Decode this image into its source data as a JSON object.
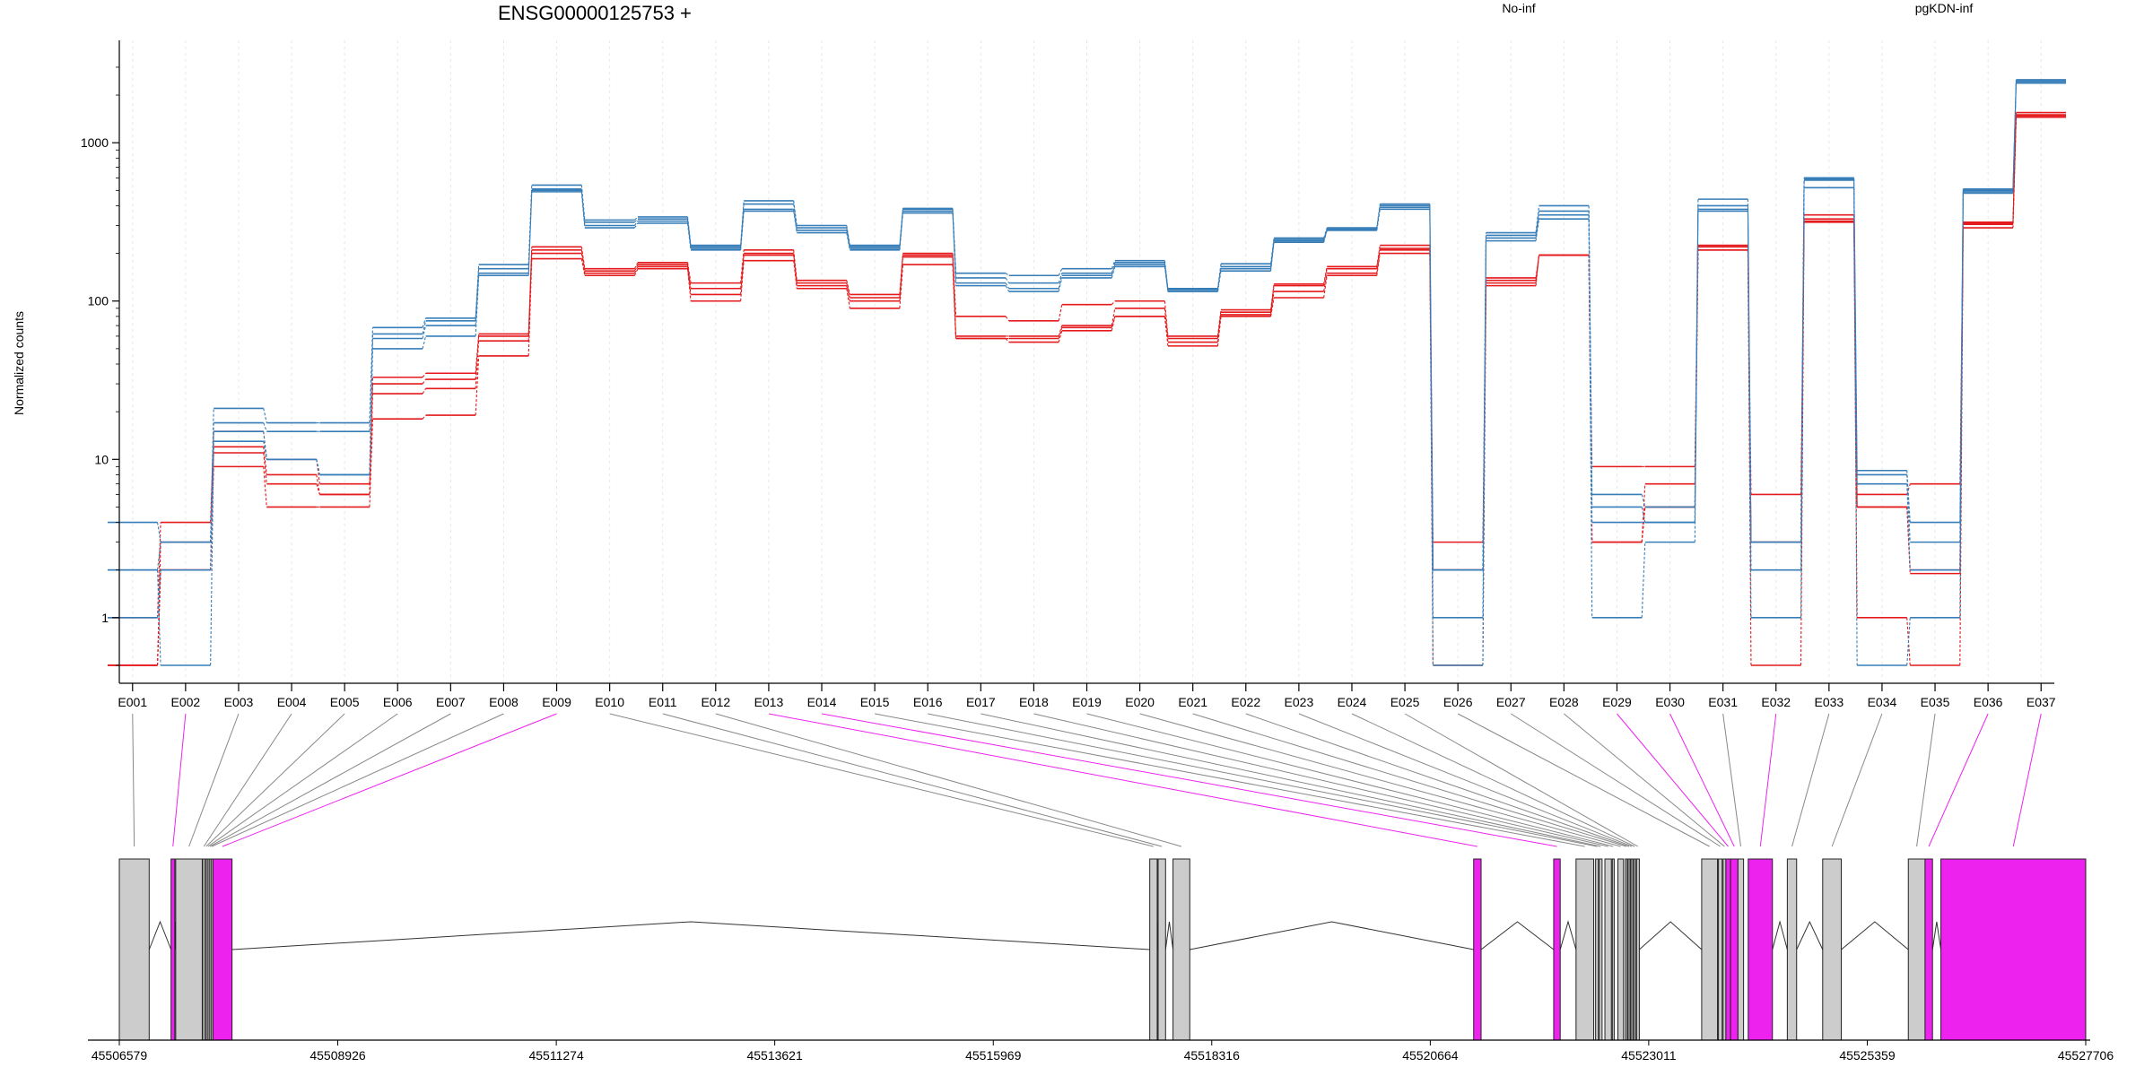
{
  "chart_data": {
    "type": "line",
    "title": "ENSG00000125753 +",
    "ylabel": "Normalized counts",
    "yscale": "log",
    "ylim": [
      0.5,
      3200
    ],
    "yticks": [
      1,
      10,
      100,
      1000
    ],
    "ytick_labels": [
      "1",
      "10",
      "100",
      "1000"
    ],
    "categories": [
      "E001",
      "E002",
      "E003",
      "E004",
      "E005",
      "E006",
      "E007",
      "E008",
      "E009",
      "E010",
      "E011",
      "E012",
      "E013",
      "E014",
      "E015",
      "E016",
      "E017",
      "E018",
      "E019",
      "E020",
      "E021",
      "E022",
      "E023",
      "E024",
      "E025",
      "E026",
      "E027",
      "E028",
      "E029",
      "E030",
      "E031",
      "E032",
      "E033",
      "E034",
      "E035",
      "E036",
      "E037"
    ],
    "series": [
      {
        "name": "No-inf",
        "group": "No-inf",
        "color": "#E41A1C",
        "values": [
          1,
          4,
          15,
          10,
          7,
          33,
          35,
          62,
          220,
          160,
          175,
          130,
          210,
          135,
          110,
          200,
          80,
          75,
          95,
          100,
          60,
          88,
          128,
          165,
          225,
          3,
          140,
          195,
          9,
          9,
          225,
          6,
          350,
          6,
          7,
          315,
          1550
        ]
      },
      {
        "name": "No-inf",
        "group": "No-inf",
        "color": "#E41A1C",
        "values": [
          0.5,
          2,
          12,
          8,
          6,
          30,
          32,
          60,
          210,
          155,
          170,
          120,
          200,
          130,
          105,
          195,
          60,
          60,
          70,
          90,
          58,
          85,
          125,
          160,
          215,
          2,
          135,
          195,
          3,
          7,
          220,
          3,
          330,
          5,
          2,
          310,
          1500
        ]
      },
      {
        "name": "No-inf",
        "group": "No-inf",
        "color": "#E41A1C",
        "values": [
          0.5,
          3,
          11,
          7,
          6,
          26,
          28,
          56,
          200,
          150,
          165,
          110,
          195,
          125,
          100,
          190,
          58,
          58,
          68,
          80,
          55,
          82,
          115,
          150,
          210,
          2,
          130,
          195,
          3,
          5,
          210,
          3,
          320,
          5,
          1.9,
          305,
          1480
        ]
      },
      {
        "name": "No-inf",
        "group": "No-inf",
        "color": "#E41A1C",
        "values": [
          0.5,
          2,
          9,
          5,
          5,
          18,
          19,
          45,
          185,
          145,
          160,
          100,
          180,
          120,
          90,
          170,
          58,
          55,
          65,
          80,
          52,
          80,
          105,
          145,
          200,
          0.5,
          125,
          195,
          3,
          5,
          210,
          0.5,
          315,
          1,
          0.5,
          290,
          1450
        ]
      },
      {
        "name": "pgKDN-inf",
        "group": "pgKDN-inf",
        "color": "#377EB8",
        "values": [
          4,
          3,
          21,
          17,
          17,
          68,
          78,
          170,
          540,
          325,
          340,
          225,
          430,
          300,
          225,
          385,
          150,
          145,
          160,
          180,
          120,
          172,
          250,
          290,
          410,
          2,
          270,
          400,
          6,
          5,
          440,
          3,
          600,
          8.5,
          4,
          510,
          2500
        ]
      },
      {
        "name": "pgKDN-inf",
        "group": "pgKDN-inf",
        "color": "#377EB8",
        "values": [
          2,
          3,
          17,
          15,
          15,
          62,
          75,
          160,
          510,
          315,
          330,
          220,
          410,
          290,
          220,
          380,
          140,
          130,
          150,
          175,
          118,
          165,
          245,
          285,
          400,
          2,
          260,
          370,
          5,
          4,
          400,
          3,
          590,
          8,
          3,
          500,
          2450
        ]
      },
      {
        "name": "pgKDN-inf",
        "group": "pgKDN-inf",
        "color": "#377EB8",
        "values": [
          1,
          2,
          15,
          10,
          8,
          58,
          70,
          150,
          500,
          300,
          320,
          215,
          380,
          280,
          215,
          370,
          130,
          120,
          145,
          170,
          115,
          160,
          240,
          280,
          390,
          1,
          250,
          350,
          4,
          4,
          380,
          2,
          580,
          7,
          2,
          490,
          2400
        ]
      },
      {
        "name": "pgKDN-inf",
        "group": "pgKDN-inf",
        "color": "#377EB8",
        "values": [
          2,
          0.5,
          13,
          10,
          8,
          50,
          60,
          145,
          490,
          290,
          310,
          210,
          370,
          270,
          210,
          360,
          125,
          115,
          140,
          165,
          115,
          155,
          235,
          280,
          380,
          0.5,
          240,
          330,
          1,
          3,
          370,
          1,
          520,
          0.5,
          1,
          480,
          2380
        ]
      }
    ],
    "legend": [
      {
        "label": "No-inf",
        "color": "#E41A1C",
        "placement": "top-center"
      },
      {
        "label": "pgKDN-inf",
        "color": "#377EB8",
        "placement": "top-right"
      }
    ],
    "grid": true
  },
  "gene_model": {
    "xlim": [
      45506579,
      45527706
    ],
    "tick_positions": [
      45506579,
      45508926,
      45511274,
      45513621,
      45515969,
      45518316,
      45520664,
      45523011,
      45525359,
      45527706
    ],
    "tick_labels": [
      "45506579",
      "45508926",
      "45511274",
      "45513621",
      "45515969",
      "45518316",
      "45520664",
      "45523011",
      "45525359",
      "45527706"
    ],
    "exon_color": "#CCCCCC",
    "highlight_color": "#EE22EE",
    "exons": [
      {
        "id": "E001",
        "start": 45506579,
        "end": 45506900,
        "highlight": false
      },
      {
        "id": "E002",
        "start": 45507135,
        "end": 45507175,
        "highlight": true
      },
      {
        "id": "E003",
        "start": 45507185,
        "end": 45507470,
        "highlight": false
      },
      {
        "id": "E004",
        "start": 45507475,
        "end": 45507500,
        "highlight": false
      },
      {
        "id": "E005",
        "start": 45507505,
        "end": 45507520,
        "highlight": false
      },
      {
        "id": "E006",
        "start": 45507525,
        "end": 45507540,
        "highlight": false
      },
      {
        "id": "E007",
        "start": 45507545,
        "end": 45507560,
        "highlight": false
      },
      {
        "id": "E008",
        "start": 45507565,
        "end": 45507580,
        "highlight": false
      },
      {
        "id": "E009",
        "start": 45507585,
        "end": 45507790,
        "highlight": true
      },
      {
        "id": "E010",
        "start": 45517650,
        "end": 45517730,
        "highlight": false
      },
      {
        "id": "E011",
        "start": 45517740,
        "end": 45517820,
        "highlight": false
      },
      {
        "id": "E012",
        "start": 45517900,
        "end": 45518080,
        "highlight": false
      },
      {
        "id": "E013",
        "start": 45521130,
        "end": 45521210,
        "highlight": true
      },
      {
        "id": "E014",
        "start": 45521990,
        "end": 45522060,
        "highlight": true
      },
      {
        "id": "E015",
        "start": 45522230,
        "end": 45522420,
        "highlight": false
      },
      {
        "id": "E016",
        "start": 45522440,
        "end": 45522470,
        "highlight": false
      },
      {
        "id": "E017",
        "start": 45522480,
        "end": 45522510,
        "highlight": false
      },
      {
        "id": "E018",
        "start": 45522540,
        "end": 45522610,
        "highlight": false
      },
      {
        "id": "E019",
        "start": 45522620,
        "end": 45522640,
        "highlight": false
      },
      {
        "id": "E020",
        "start": 45522680,
        "end": 45522740,
        "highlight": false
      },
      {
        "id": "E021",
        "start": 45522760,
        "end": 45522780,
        "highlight": false
      },
      {
        "id": "E022",
        "start": 45522790,
        "end": 45522810,
        "highlight": false
      },
      {
        "id": "E023",
        "start": 45522820,
        "end": 45522840,
        "highlight": false
      },
      {
        "id": "E024",
        "start": 45522850,
        "end": 45522870,
        "highlight": false
      },
      {
        "id": "E025",
        "start": 45522880,
        "end": 45522910,
        "highlight": false
      },
      {
        "id": "E026",
        "start": 45523580,
        "end": 45523750,
        "highlight": false
      },
      {
        "id": "E027",
        "start": 45523760,
        "end": 45523800,
        "highlight": false
      },
      {
        "id": "E028",
        "start": 45523810,
        "end": 45523840,
        "highlight": false
      },
      {
        "id": "E029",
        "start": 45523840,
        "end": 45523890,
        "highlight": true
      },
      {
        "id": "E030",
        "start": 45523890,
        "end": 45523970,
        "highlight": true
      },
      {
        "id": "E031",
        "start": 45523970,
        "end": 45524030,
        "highlight": false
      },
      {
        "id": "E032",
        "start": 45524080,
        "end": 45524340,
        "highlight": true
      },
      {
        "id": "E033",
        "start": 45524500,
        "end": 45524600,
        "highlight": false
      },
      {
        "id": "E034",
        "start": 45524880,
        "end": 45525080,
        "highlight": false
      },
      {
        "id": "E035",
        "start": 45525800,
        "end": 45525980,
        "highlight": false
      },
      {
        "id": "E036",
        "start": 45525980,
        "end": 45526060,
        "highlight": true
      },
      {
        "id": "E037",
        "start": 45526150,
        "end": 45527706,
        "highlight": true
      }
    ],
    "segments": [
      [
        45506579,
        45506900
      ],
      [
        45507135,
        45507175
      ],
      [
        45507185,
        45507790
      ],
      [
        45517650,
        45517730
      ],
      [
        45517740,
        45517820
      ],
      [
        45517900,
        45518080
      ],
      [
        45521130,
        45521210
      ],
      [
        45521990,
        45522060
      ],
      [
        45522230,
        45522910
      ],
      [
        45523580,
        45524340
      ],
      [
        45524500,
        45524600
      ],
      [
        45524880,
        45525080
      ],
      [
        45525800,
        45526060
      ],
      [
        45526150,
        45527706
      ]
    ]
  }
}
